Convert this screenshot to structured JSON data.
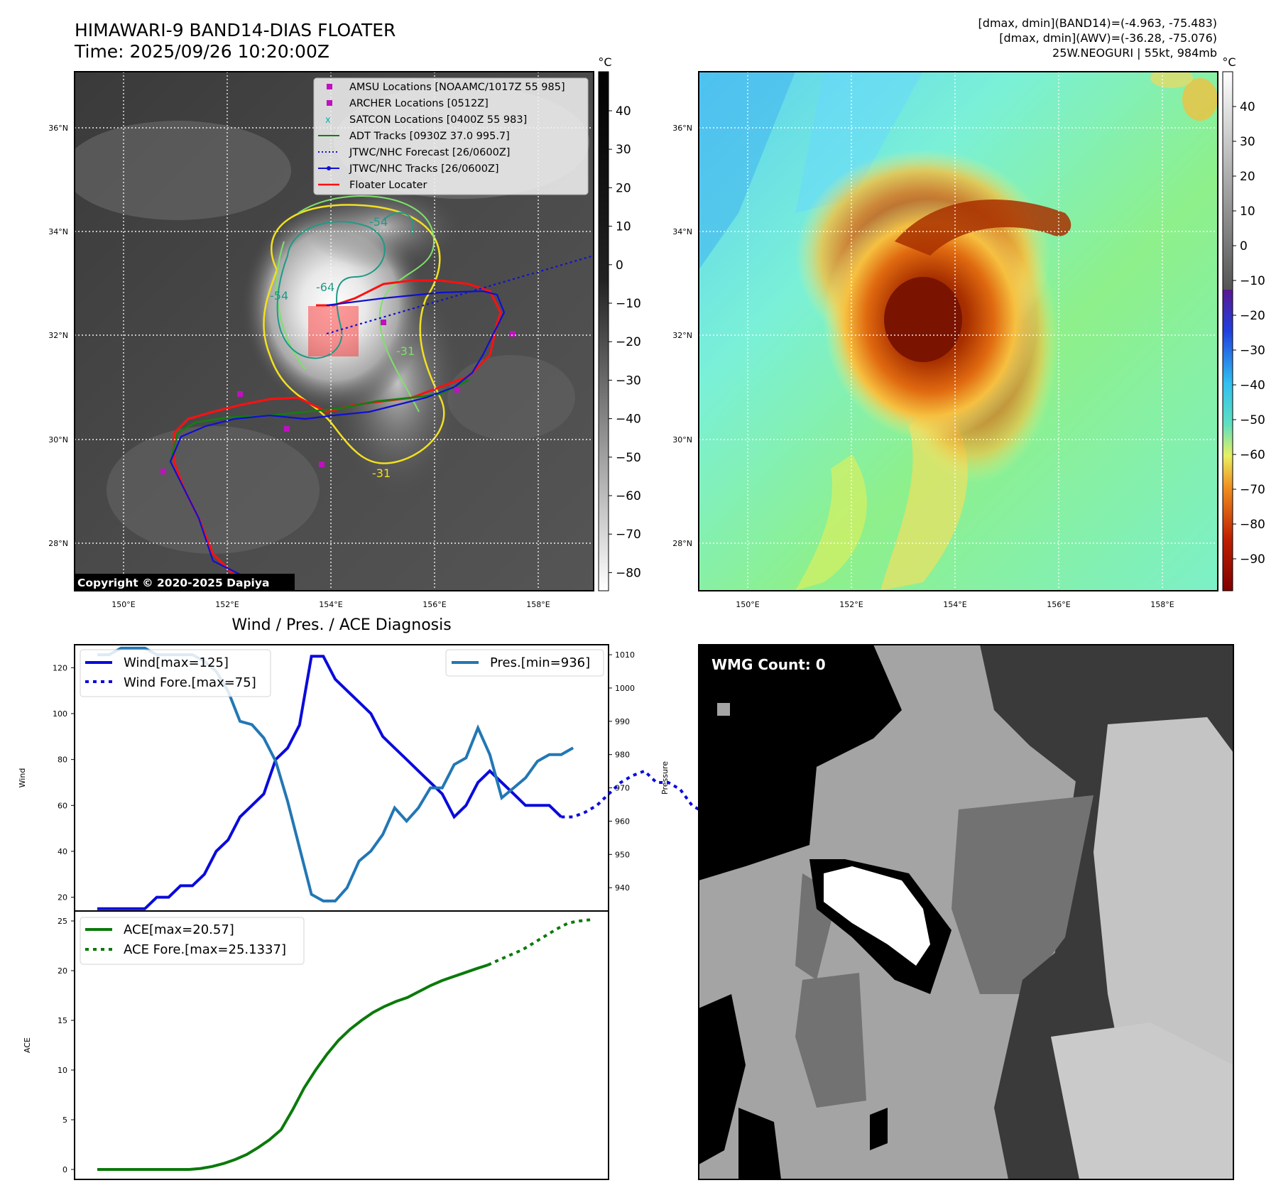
{
  "header": {
    "title_line1": "HIMAWARI-9 BAND14-DIAS FLOATER",
    "title_line2": "Time: 2025/09/26 10:20:00Z",
    "info_line1": "[dmax, dmin](BAND14)=(-4.963, -75.483)",
    "info_line2": "[dmax, dmin](AWV)=(-36.28, -75.076)",
    "info_line3": "25W.NEOGURI | 55kt, 984mb"
  },
  "colors": {
    "wind": "#0a0adc",
    "pressure": "#2277b4",
    "ace": "#0a7a0a",
    "track_red": "#ff0a0a",
    "contour_yellow": "#f2e020",
    "contour_green": "#7ee06a",
    "contour_teal": "#1e9a86"
  },
  "copyright": "Copyright © 2020-2025 Dapiya",
  "ir_panel": {
    "colorbar_unit": "°C",
    "colorbar_ticks": [
      "40",
      "30",
      "20",
      "10",
      "0",
      "−10",
      "−20",
      "−30",
      "−40",
      "−50",
      "−60",
      "−70",
      "−80"
    ],
    "lat_ticks": [
      "36°N",
      "34°N",
      "32°N",
      "30°N",
      "28°N"
    ],
    "lon_ticks": [
      "150°E",
      "152°E",
      "154°E",
      "156°E",
      "158°E"
    ],
    "contour_labels": [
      "-54",
      "-64",
      "-54",
      "-31",
      "-31"
    ],
    "legend": [
      {
        "label": "AMSU Locations [NOAAMC/1017Z 55 985]",
        "marker": "square",
        "color": "#c010c0"
      },
      {
        "label": "ARCHER Locations [0512Z]",
        "marker": "square",
        "color": "#c010c0"
      },
      {
        "label": "SATCON Locations [0400Z 55 983]",
        "marker": "x",
        "color": "#10b0b0"
      },
      {
        "label": "ADT Tracks [0930Z 37.0 995.7]",
        "marker": "line",
        "color": "#108010"
      },
      {
        "label": "JTWC/NHC Forecast [26/0600Z]",
        "marker": "dotted",
        "color": "#1010d0"
      },
      {
        "label": "JTWC/NHC Tracks [26/0600Z]",
        "marker": "line-dot",
        "color": "#1010d0"
      },
      {
        "label": "Floater Locater",
        "marker": "line",
        "color": "#ff1010"
      }
    ]
  },
  "enhanced_panel": {
    "colorbar_unit": "°C",
    "colorbar_ticks": [
      "40",
      "30",
      "20",
      "10",
      "0",
      "−10",
      "−20",
      "−30",
      "−40",
      "−50",
      "−60",
      "−70",
      "−80",
      "−90"
    ],
    "lat_ticks": [
      "36°N",
      "34°N",
      "32°N",
      "30°N",
      "28°N"
    ],
    "lon_ticks": [
      "150°E",
      "152°E",
      "154°E",
      "156°E",
      "158°E"
    ]
  },
  "wmg_panel": {
    "label": "WMG Count: 0"
  },
  "chart_data": [
    {
      "type": "line",
      "title": "Wind / Pres. / ACE Diagnosis",
      "ylabel": "Wind",
      "y2label": "Pressure",
      "ylim": [
        14,
        130
      ],
      "y2lim": [
        933,
        1013
      ],
      "yticks": [
        20,
        40,
        60,
        80,
        100,
        120
      ],
      "y2ticks": [
        940,
        950,
        960,
        970,
        980,
        990,
        1000,
        1010
      ],
      "series": [
        {
          "name": "Wind[max=125]",
          "axis": "left",
          "style": "solid",
          "values": [
            15,
            15,
            15,
            15,
            15,
            20,
            20,
            25,
            25,
            30,
            40,
            45,
            55,
            60,
            65,
            80,
            85,
            95,
            125,
            125,
            115,
            110,
            105,
            100,
            90,
            85,
            80,
            75,
            70,
            65,
            55,
            60,
            70,
            75,
            70,
            65,
            60,
            60,
            60,
            55
          ]
        },
        {
          "name": "Wind Fore.[max=75]",
          "axis": "left",
          "style": "dotted",
          "offset": 39,
          "values": [
            55,
            55,
            57,
            60,
            65,
            70,
            73,
            75,
            70,
            70,
            67,
            60,
            57
          ]
        },
        {
          "name": "Pres.[min=936]",
          "axis": "right",
          "style": "solid",
          "offset": 0,
          "values": [
            1010,
            1010,
            1012,
            1012,
            1012,
            1010,
            1010,
            1010,
            1010,
            1008,
            1005,
            999,
            990,
            989,
            985,
            978,
            966,
            952,
            938,
            936,
            936,
            940,
            948,
            951,
            956,
            964,
            960,
            964,
            970,
            970,
            977,
            979,
            988,
            980,
            967,
            970,
            973,
            978,
            980,
            980,
            982
          ]
        }
      ]
    },
    {
      "type": "line",
      "ylabel": "ACE",
      "ylim": [
        -1,
        26
      ],
      "yticks": [
        0,
        5,
        10,
        15,
        20,
        25
      ],
      "series": [
        {
          "name": "ACE[max=20.57]",
          "style": "solid",
          "values": [
            0,
            0,
            0,
            0,
            0,
            0,
            0,
            0,
            0,
            0.1,
            0.3,
            0.6,
            1.0,
            1.5,
            2.2,
            3.0,
            4.0,
            6.0,
            8.2,
            10.0,
            11.6,
            13.0,
            14.1,
            15.0,
            15.8,
            16.4,
            16.9,
            17.3,
            17.9,
            18.5,
            19.0,
            19.4,
            19.8,
            20.2,
            20.57
          ]
        },
        {
          "name": "ACE Fore.[max=25.1337]",
          "style": "dotted",
          "offset": 34,
          "values": [
            20.57,
            21.1,
            21.6,
            22.1,
            22.8,
            23.5,
            24.2,
            24.8,
            25.0,
            25.1337
          ]
        }
      ]
    }
  ]
}
